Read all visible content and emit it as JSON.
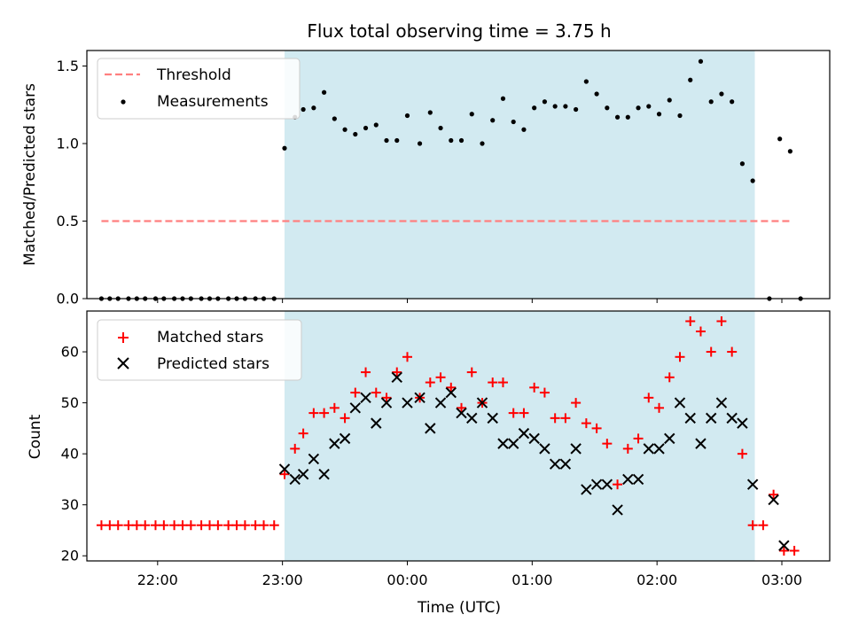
{
  "chart_data": [
    {
      "type": "scatter",
      "title": "Flux total observing time = 3.75 h",
      "xlabel": "",
      "ylabel": "Matched/Predicted stars",
      "ylim": [
        0,
        1.6
      ],
      "yticks": [
        0.0,
        0.5,
        1.0,
        1.5
      ],
      "ytick_labels": [
        "0.0",
        "0.5",
        "1.0",
        "1.5"
      ],
      "xlim": [
        "21:26",
        "03:23"
      ],
      "legend_position": "top-left",
      "shaded_span": [
        "23:01",
        "02:47"
      ],
      "shaded_color": "#add8e6",
      "series": [
        {
          "name": "Threshold",
          "kind": "dashed-line",
          "color": "#ff7f7f",
          "points": [
            [
              "21:33",
              0.5
            ],
            [
              "03:04",
              0.5
            ]
          ]
        },
        {
          "name": "Measurements",
          "kind": "dot",
          "color": "#000000",
          "points": [
            [
              "21:33",
              0.0
            ],
            [
              "21:37",
              0.0
            ],
            [
              "21:41",
              0.0
            ],
            [
              "21:46",
              0.0
            ],
            [
              "21:50",
              0.0
            ],
            [
              "21:54",
              0.0
            ],
            [
              "21:59",
              0.0
            ],
            [
              "22:03",
              0.0
            ],
            [
              "22:08",
              0.0
            ],
            [
              "22:12",
              0.0
            ],
            [
              "22:16",
              0.0
            ],
            [
              "22:21",
              0.0
            ],
            [
              "22:25",
              0.0
            ],
            [
              "22:29",
              0.0
            ],
            [
              "22:34",
              0.0
            ],
            [
              "22:38",
              0.0
            ],
            [
              "22:42",
              0.0
            ],
            [
              "22:47",
              0.0
            ],
            [
              "22:51",
              0.0
            ],
            [
              "22:56",
              0.0
            ],
            [
              "23:01",
              0.97
            ],
            [
              "23:06",
              1.17
            ],
            [
              "23:10",
              1.22
            ],
            [
              "23:15",
              1.23
            ],
            [
              "23:20",
              1.33
            ],
            [
              "23:25",
              1.16
            ],
            [
              "23:30",
              1.09
            ],
            [
              "23:35",
              1.06
            ],
            [
              "23:40",
              1.1
            ],
            [
              "23:45",
              1.12
            ],
            [
              "23:50",
              1.02
            ],
            [
              "23:55",
              1.02
            ],
            [
              "00:00",
              1.18
            ],
            [
              "00:06",
              1.0
            ],
            [
              "00:11",
              1.2
            ],
            [
              "00:16",
              1.1
            ],
            [
              "00:21",
              1.02
            ],
            [
              "00:26",
              1.02
            ],
            [
              "00:31",
              1.19
            ],
            [
              "00:36",
              1.0
            ],
            [
              "00:41",
              1.15
            ],
            [
              "00:46",
              1.29
            ],
            [
              "00:51",
              1.14
            ],
            [
              "00:56",
              1.09
            ],
            [
              "01:01",
              1.23
            ],
            [
              "01:06",
              1.27
            ],
            [
              "01:11",
              1.24
            ],
            [
              "01:16",
              1.24
            ],
            [
              "01:21",
              1.22
            ],
            [
              "01:26",
              1.4
            ],
            [
              "01:31",
              1.32
            ],
            [
              "01:36",
              1.23
            ],
            [
              "01:41",
              1.17
            ],
            [
              "01:46",
              1.17
            ],
            [
              "01:51",
              1.23
            ],
            [
              "01:56",
              1.24
            ],
            [
              "02:01",
              1.19
            ],
            [
              "02:06",
              1.28
            ],
            [
              "02:11",
              1.18
            ],
            [
              "02:16",
              1.41
            ],
            [
              "02:21",
              1.53
            ],
            [
              "02:26",
              1.27
            ],
            [
              "02:31",
              1.32
            ],
            [
              "02:36",
              1.27
            ],
            [
              "02:41",
              0.87
            ],
            [
              "02:46",
              0.76
            ],
            [
              "02:54",
              0.0
            ],
            [
              "02:59",
              1.03
            ],
            [
              "03:04",
              0.95
            ],
            [
              "03:09",
              0.0
            ]
          ]
        }
      ]
    },
    {
      "type": "scatter",
      "title": "",
      "xlabel": "Time (UTC)",
      "ylabel": "Count",
      "ylim": [
        19,
        68
      ],
      "yticks": [
        20,
        30,
        40,
        50,
        60
      ],
      "ytick_labels": [
        "20",
        "30",
        "40",
        "50",
        "60"
      ],
      "xlim": [
        "21:26",
        "03:23"
      ],
      "xticks": [
        "22:00",
        "23:00",
        "00:00",
        "01:00",
        "02:00",
        "03:00"
      ],
      "xtick_labels": [
        "22:00",
        "23:00",
        "00:00",
        "01:00",
        "02:00",
        "03:00"
      ],
      "legend_position": "top-left",
      "shaded_span": [
        "23:01",
        "02:47"
      ],
      "shaded_color": "#add8e6",
      "series": [
        {
          "name": "Matched stars",
          "kind": "plus",
          "color": "#ff0000",
          "points": [
            [
              "21:33",
              26
            ],
            [
              "21:37",
              26
            ],
            [
              "21:41",
              26
            ],
            [
              "21:46",
              26
            ],
            [
              "21:50",
              26
            ],
            [
              "21:54",
              26
            ],
            [
              "21:59",
              26
            ],
            [
              "22:03",
              26
            ],
            [
              "22:08",
              26
            ],
            [
              "22:12",
              26
            ],
            [
              "22:16",
              26
            ],
            [
              "22:21",
              26
            ],
            [
              "22:25",
              26
            ],
            [
              "22:29",
              26
            ],
            [
              "22:34",
              26
            ],
            [
              "22:38",
              26
            ],
            [
              "22:42",
              26
            ],
            [
              "22:47",
              26
            ],
            [
              "22:51",
              26
            ],
            [
              "22:56",
              26
            ],
            [
              "23:01",
              36
            ],
            [
              "23:06",
              41
            ],
            [
              "23:10",
              44
            ],
            [
              "23:15",
              48
            ],
            [
              "23:20",
              48
            ],
            [
              "23:25",
              49
            ],
            [
              "23:30",
              47
            ],
            [
              "23:35",
              52
            ],
            [
              "23:40",
              56
            ],
            [
              "23:45",
              52
            ],
            [
              "23:50",
              51
            ],
            [
              "23:55",
              56
            ],
            [
              "00:00",
              59
            ],
            [
              "00:06",
              51
            ],
            [
              "00:11",
              54
            ],
            [
              "00:16",
              55
            ],
            [
              "00:21",
              53
            ],
            [
              "00:26",
              49
            ],
            [
              "00:31",
              56
            ],
            [
              "00:36",
              50
            ],
            [
              "00:41",
              54
            ],
            [
              "00:46",
              54
            ],
            [
              "00:51",
              48
            ],
            [
              "00:56",
              48
            ],
            [
              "01:01",
              53
            ],
            [
              "01:06",
              52
            ],
            [
              "01:11",
              47
            ],
            [
              "01:16",
              47
            ],
            [
              "01:21",
              50
            ],
            [
              "01:26",
              46
            ],
            [
              "01:31",
              45
            ],
            [
              "01:36",
              42
            ],
            [
              "01:41",
              34
            ],
            [
              "01:46",
              41
            ],
            [
              "01:51",
              43
            ],
            [
              "01:56",
              51
            ],
            [
              "02:01",
              49
            ],
            [
              "02:06",
              55
            ],
            [
              "02:11",
              59
            ],
            [
              "02:16",
              66
            ],
            [
              "02:21",
              64
            ],
            [
              "02:26",
              60
            ],
            [
              "02:31",
              66
            ],
            [
              "02:36",
              60
            ],
            [
              "02:41",
              40
            ],
            [
              "02:46",
              26
            ],
            [
              "02:51",
              26
            ],
            [
              "02:56",
              32
            ],
            [
              "03:01",
              21
            ],
            [
              "03:06",
              21
            ]
          ]
        },
        {
          "name": "Predicted stars",
          "kind": "x",
          "color": "#000000",
          "points": [
            [
              "23:01",
              37
            ],
            [
              "23:06",
              35
            ],
            [
              "23:10",
              36
            ],
            [
              "23:15",
              39
            ],
            [
              "23:20",
              36
            ],
            [
              "23:25",
              42
            ],
            [
              "23:30",
              43
            ],
            [
              "23:35",
              49
            ],
            [
              "23:40",
              51
            ],
            [
              "23:45",
              46
            ],
            [
              "23:50",
              50
            ],
            [
              "23:55",
              55
            ],
            [
              "00:00",
              50
            ],
            [
              "00:06",
              51
            ],
            [
              "00:11",
              45
            ],
            [
              "00:16",
              50
            ],
            [
              "00:21",
              52
            ],
            [
              "00:26",
              48
            ],
            [
              "00:31",
              47
            ],
            [
              "00:36",
              50
            ],
            [
              "00:41",
              47
            ],
            [
              "00:46",
              42
            ],
            [
              "00:51",
              42
            ],
            [
              "00:56",
              44
            ],
            [
              "01:01",
              43
            ],
            [
              "01:06",
              41
            ],
            [
              "01:11",
              38
            ],
            [
              "01:16",
              38
            ],
            [
              "01:21",
              41
            ],
            [
              "01:26",
              33
            ],
            [
              "01:31",
              34
            ],
            [
              "01:36",
              34
            ],
            [
              "01:41",
              29
            ],
            [
              "01:46",
              35
            ],
            [
              "01:51",
              35
            ],
            [
              "01:56",
              41
            ],
            [
              "02:01",
              41
            ],
            [
              "02:06",
              43
            ],
            [
              "02:11",
              50
            ],
            [
              "02:16",
              47
            ],
            [
              "02:21",
              42
            ],
            [
              "02:26",
              47
            ],
            [
              "02:31",
              50
            ],
            [
              "02:36",
              47
            ],
            [
              "02:41",
              46
            ],
            [
              "02:46",
              34
            ],
            [
              "02:56",
              31
            ],
            [
              "03:01",
              22
            ]
          ]
        }
      ]
    }
  ]
}
